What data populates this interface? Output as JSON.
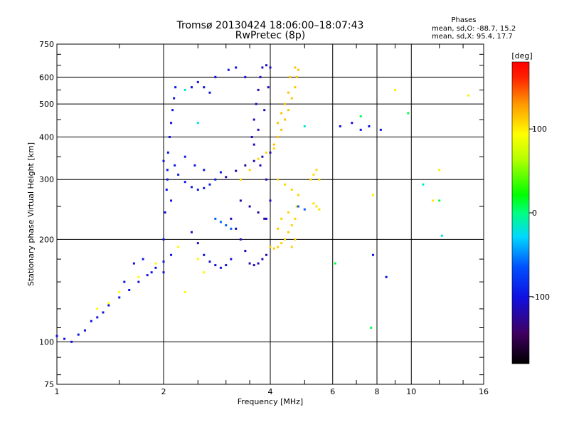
{
  "chart_data": {
    "type": "scatter",
    "title": "Tromsø 20130424 18:06:00–18:07:43",
    "subtitle": "RwPretec (8p)",
    "info": {
      "heading": "Phases",
      "line_o": "mean, sd,O: -88.7, 15.2",
      "line_x": "mean, sd,X:  95.4, 17.7"
    },
    "xlabel": "Frequency [MHz]",
    "ylabel": "Stationary phase Virtual Height [km]",
    "x_scale": "log",
    "y_scale": "log",
    "xlim": [
      1,
      16
    ],
    "ylim": [
      75,
      750
    ],
    "x_ticks": [
      {
        "v": 1,
        "label": "1"
      },
      {
        "v": 2,
        "label": "2"
      },
      {
        "v": 4,
        "label": "4"
      },
      {
        "v": 6,
        "label": "6"
      },
      {
        "v": 8,
        "label": "8"
      },
      {
        "v": 10,
        "label": "10"
      },
      {
        "v": 16,
        "label": "16"
      }
    ],
    "y_ticks": [
      {
        "v": 75,
        "label": "75"
      },
      {
        "v": 100,
        "label": "100"
      },
      {
        "v": 200,
        "label": "200"
      },
      {
        "v": 300,
        "label": "300"
      },
      {
        "v": 400,
        "label": "400"
      },
      {
        "v": 500,
        "label": "500"
      },
      {
        "v": 600,
        "label": "600"
      },
      {
        "v": 750,
        "label": "750"
      }
    ],
    "grid_x": [
      2,
      4,
      6,
      8,
      10
    ],
    "grid_y": [
      100,
      200,
      300,
      400,
      500,
      600
    ],
    "grid": true,
    "colorbar": {
      "unit": "[deg]",
      "range": [
        -180,
        180
      ],
      "ticks": [
        {
          "v": 100,
          "label": "100"
        },
        {
          "v": 0,
          "label": "0"
        },
        {
          "v": -100,
          "label": "-100"
        }
      ]
    },
    "series": [
      {
        "phase": -100,
        "points": [
          [
            1.0,
            104
          ],
          [
            1.05,
            102
          ],
          [
            1.1,
            100
          ],
          [
            1.15,
            105
          ],
          [
            1.2,
            108
          ],
          [
            1.25,
            115
          ],
          [
            1.3,
            118
          ],
          [
            1.35,
            122
          ],
          [
            1.4,
            128
          ],
          [
            1.5,
            135
          ],
          [
            1.6,
            142
          ],
          [
            1.7,
            150
          ],
          [
            1.8,
            157
          ],
          [
            1.9,
            165
          ],
          [
            2.0,
            172
          ],
          [
            2.1,
            180
          ],
          [
            1.55,
            150
          ],
          [
            1.65,
            170
          ],
          [
            1.75,
            175
          ],
          [
            1.85,
            160
          ]
        ]
      },
      {
        "phase": -100,
        "points": [
          [
            2.0,
            160
          ],
          [
            2.0,
            200
          ],
          [
            2.02,
            240
          ],
          [
            2.04,
            280
          ],
          [
            2.05,
            320
          ],
          [
            2.06,
            360
          ],
          [
            2.08,
            400
          ],
          [
            2.1,
            440
          ],
          [
            2.12,
            480
          ],
          [
            2.14,
            520
          ],
          [
            2.16,
            560
          ],
          [
            2.05,
            300
          ],
          [
            2.1,
            260
          ],
          [
            2.0,
            340
          ]
        ]
      },
      {
        "phase": -95,
        "points": [
          [
            2.15,
            330
          ],
          [
            2.2,
            310
          ],
          [
            2.3,
            295
          ],
          [
            2.4,
            285
          ],
          [
            2.5,
            280
          ],
          [
            2.6,
            283
          ],
          [
            2.7,
            290
          ],
          [
            2.8,
            300
          ],
          [
            2.9,
            315
          ],
          [
            2.3,
            350
          ],
          [
            2.45,
            330
          ],
          [
            2.6,
            320
          ]
        ]
      },
      {
        "phase": -100,
        "points": [
          [
            2.4,
            560
          ],
          [
            2.5,
            580
          ],
          [
            2.6,
            560
          ],
          [
            2.7,
            540
          ],
          [
            2.8,
            600
          ],
          [
            3.05,
            630
          ],
          [
            3.2,
            640
          ],
          [
            3.4,
            600
          ]
        ]
      },
      {
        "phase": -105,
        "points": [
          [
            2.6,
            180
          ],
          [
            2.7,
            172
          ],
          [
            2.8,
            168
          ],
          [
            2.9,
            165
          ],
          [
            3.0,
            168
          ],
          [
            3.1,
            175
          ],
          [
            2.5,
            195
          ],
          [
            2.4,
            210
          ]
        ]
      },
      {
        "phase": -120,
        "points": [
          [
            3.0,
            305
          ],
          [
            3.2,
            318
          ],
          [
            3.4,
            330
          ],
          [
            3.6,
            340
          ],
          [
            3.8,
            350
          ],
          [
            4.0,
            360
          ],
          [
            3.3,
            260
          ],
          [
            3.5,
            250
          ],
          [
            3.7,
            240
          ],
          [
            3.9,
            230
          ],
          [
            3.1,
            230
          ],
          [
            3.2,
            215
          ]
        ]
      },
      {
        "phase": -115,
        "points": [
          [
            3.5,
            170
          ],
          [
            3.6,
            168
          ],
          [
            3.7,
            170
          ],
          [
            3.8,
            175
          ],
          [
            3.9,
            180
          ],
          [
            4.0,
            190
          ],
          [
            3.4,
            185
          ],
          [
            3.3,
            200
          ]
        ]
      },
      {
        "phase": -110,
        "points": [
          [
            3.55,
            400
          ],
          [
            3.6,
            450
          ],
          [
            3.65,
            500
          ],
          [
            3.7,
            550
          ],
          [
            3.75,
            600
          ],
          [
            3.8,
            640
          ],
          [
            3.9,
            650
          ],
          [
            4.0,
            640
          ],
          [
            3.95,
            560
          ],
          [
            3.85,
            480
          ],
          [
            3.7,
            420
          ],
          [
            3.6,
            380
          ],
          [
            3.75,
            330
          ],
          [
            3.9,
            300
          ],
          [
            4.0,
            260
          ],
          [
            3.85,
            230
          ]
        ]
      },
      {
        "phase": 115,
        "points": [
          [
            4.1,
            380
          ],
          [
            4.2,
            400
          ],
          [
            4.3,
            420
          ],
          [
            4.4,
            450
          ],
          [
            4.5,
            480
          ],
          [
            4.6,
            520
          ],
          [
            4.7,
            560
          ],
          [
            4.75,
            600
          ],
          [
            4.8,
            630
          ],
          [
            4.7,
            640
          ],
          [
            4.55,
            600
          ],
          [
            4.5,
            540
          ],
          [
            4.4,
            500
          ],
          [
            4.3,
            470
          ],
          [
            4.2,
            440
          ]
        ]
      },
      {
        "phase": 110,
        "points": [
          [
            4.0,
            190
          ],
          [
            4.1,
            188
          ],
          [
            4.2,
            190
          ],
          [
            4.3,
            195
          ],
          [
            4.4,
            200
          ],
          [
            4.5,
            210
          ],
          [
            4.6,
            220
          ],
          [
            4.7,
            230
          ],
          [
            4.75,
            250
          ],
          [
            4.8,
            270
          ],
          [
            4.5,
            240
          ],
          [
            4.3,
            230
          ],
          [
            4.2,
            215
          ],
          [
            4.6,
            190
          ],
          [
            4.7,
            200
          ]
        ]
      },
      {
        "phase": 108,
        "points": [
          [
            3.3,
            300
          ],
          [
            3.5,
            320
          ],
          [
            3.7,
            345
          ],
          [
            3.9,
            360
          ],
          [
            4.1,
            370
          ],
          [
            4.2,
            300
          ],
          [
            4.4,
            290
          ],
          [
            4.6,
            280
          ]
        ]
      },
      {
        "phase": 105,
        "points": [
          [
            5.2,
            300
          ],
          [
            5.3,
            310
          ],
          [
            5.4,
            320
          ],
          [
            5.5,
            300
          ],
          [
            5.4,
            250
          ],
          [
            5.5,
            245
          ],
          [
            5.3,
            255
          ]
        ]
      },
      {
        "phase": -60,
        "points": [
          [
            2.8,
            230
          ],
          [
            2.9,
            225
          ],
          [
            3.0,
            220
          ],
          [
            3.1,
            215
          ],
          [
            4.8,
            250
          ],
          [
            5.0,
            245
          ]
        ]
      },
      {
        "phase": 95,
        "points": [
          [
            1.3,
            125
          ],
          [
            1.4,
            130
          ],
          [
            1.5,
            140
          ],
          [
            1.7,
            155
          ],
          [
            1.9,
            170
          ],
          [
            2.2,
            190
          ],
          [
            2.5,
            175
          ],
          [
            2.6,
            160
          ],
          [
            2.3,
            140
          ]
        ]
      },
      {
        "phase": -100,
        "points": [
          [
            6.3,
            430
          ],
          [
            6.8,
            440
          ],
          [
            7.2,
            420
          ],
          [
            7.6,
            430
          ],
          [
            7.8,
            180
          ],
          [
            8.5,
            155
          ],
          [
            8.2,
            420
          ]
        ]
      },
      {
        "phase": 100,
        "points": [
          [
            7.8,
            270
          ],
          [
            9.0,
            550
          ],
          [
            14.5,
            530
          ],
          [
            11.5,
            260
          ],
          [
            12.0,
            320
          ]
        ]
      },
      {
        "phase": 10,
        "points": [
          [
            6.1,
            170
          ],
          [
            7.2,
            460
          ],
          [
            7.7,
            110
          ],
          [
            9.8,
            470
          ],
          [
            12.0,
            260
          ]
        ]
      },
      {
        "phase": -20,
        "points": [
          [
            2.5,
            440
          ],
          [
            2.3,
            550
          ],
          [
            5.0,
            430
          ],
          [
            10.8,
            290
          ],
          [
            12.2,
            205
          ]
        ]
      }
    ]
  }
}
